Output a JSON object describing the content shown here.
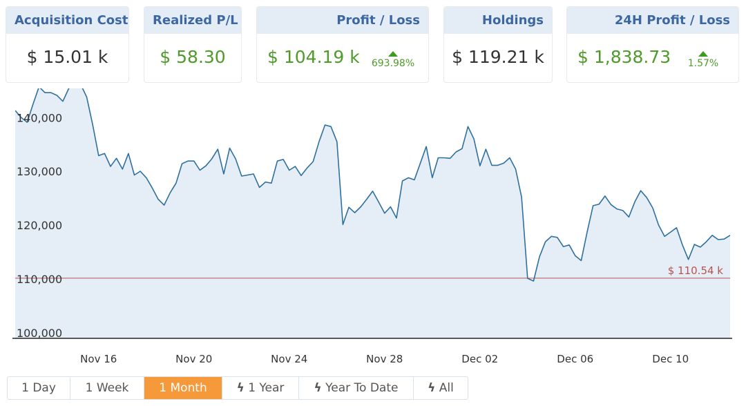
{
  "cards": [
    {
      "title": "Acquisition Cost",
      "value": "$ 15.01 k"
    },
    {
      "title": "Realized P/L",
      "value": "$ 58.30"
    },
    {
      "title": "Profit / Loss",
      "value": "$ 104.19 k",
      "change": "693.98%",
      "trend": "up"
    },
    {
      "title": "Holdings",
      "value": "$ 119.21 k"
    },
    {
      "title": "24H Profit / Loss",
      "value": "$ 1,838.73",
      "change": "1.57%",
      "trend": "up"
    }
  ],
  "colors": {
    "positive": "#4f9a2a",
    "neutral": "#333333",
    "header_bg": "#e4edf6",
    "header_text": "#3d67a3",
    "line": "#2e6f9e",
    "fill": "#e5eef6",
    "reference": "#b5524b",
    "active_range": "#f5993a"
  },
  "ranges": [
    {
      "label": "1 Day",
      "icon": null
    },
    {
      "label": "1 Week",
      "icon": null
    },
    {
      "label": "1 Month",
      "icon": null,
      "active": true
    },
    {
      "label": "1 Year",
      "icon": "lightning-icon"
    },
    {
      "label": "Year To Date",
      "icon": "lightning-icon"
    },
    {
      "label": "All",
      "icon": "lightning-icon"
    }
  ],
  "chart_data": {
    "type": "area",
    "x_start": "2023-11-12T12:00",
    "x_step_hours": 6,
    "xlim": [
      "2023-11-12T12:00",
      "2023-12-12T12:00"
    ],
    "ylim": [
      98850,
      145300
    ],
    "y_ticks": [
      100000,
      110000,
      120000,
      130000,
      140000
    ],
    "y_tick_labels": [
      "100,000",
      "110,000",
      "120,000",
      "130,000",
      "140,000"
    ],
    "x_ticks": [
      "2023-11-16",
      "2023-11-20",
      "2023-11-24",
      "2023-11-28",
      "2023-12-02",
      "2023-12-06",
      "2023-12-10"
    ],
    "x_tick_labels": [
      "Nov 16",
      "Nov 20",
      "Nov 24",
      "Nov 28",
      "Dec 02",
      "Dec 06",
      "Dec 10"
    ],
    "grid": false,
    "reference_line": {
      "value": 110540,
      "label": "$ 110.54 k"
    },
    "values": [
      141200,
      139900,
      139000,
      142400,
      145600,
      144500,
      144500,
      144000,
      142900,
      145300,
      146300,
      146000,
      143700,
      138600,
      132800,
      133200,
      130800,
      132300,
      130300,
      133200,
      129200,
      129900,
      128700,
      126800,
      124700,
      123600,
      125900,
      127700,
      131300,
      131800,
      131800,
      130100,
      130900,
      132200,
      134000,
      129400,
      134200,
      132200,
      129000,
      129200,
      129400,
      126900,
      127900,
      127700,
      131800,
      132100,
      130100,
      130800,
      129100,
      130500,
      131700,
      135400,
      138500,
      138200,
      135400,
      120000,
      123200,
      122200,
      123300,
      124700,
      126200,
      124200,
      122100,
      123300,
      121200,
      128100,
      128700,
      128300,
      131400,
      134500,
      128700,
      132400,
      132400,
      132300,
      133500,
      134100,
      138200,
      135900,
      130900,
      134000,
      131000,
      131000,
      131400,
      132400,
      130300,
      125100,
      110000,
      109500,
      114000,
      116800,
      117800,
      117600,
      115900,
      116200,
      114200,
      113300,
      118600,
      123500,
      123800,
      125300,
      123700,
      122900,
      122600,
      121400,
      124200,
      126300,
      125000,
      123100,
      119900,
      117800,
      118600,
      119400,
      116200,
      113500,
      116300,
      115800,
      116800,
      118000,
      117200,
      117300,
      118000
    ]
  }
}
